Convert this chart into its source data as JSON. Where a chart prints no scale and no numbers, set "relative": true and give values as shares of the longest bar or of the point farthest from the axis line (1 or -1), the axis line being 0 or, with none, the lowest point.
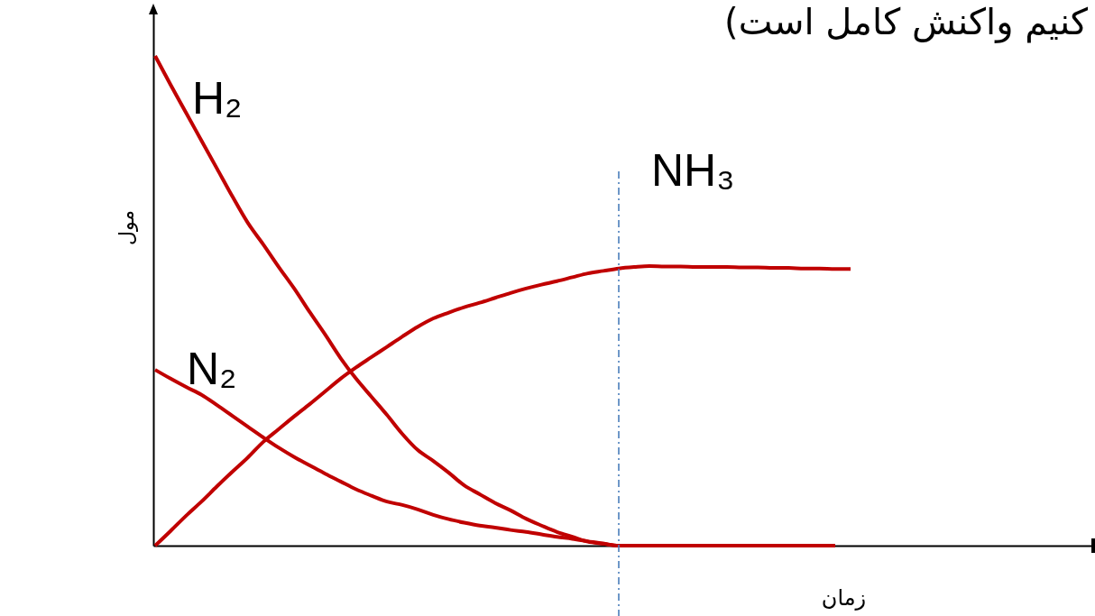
{
  "chart_data": {
    "type": "line",
    "title": "کنیم واکنش کامل است)",
    "xlabel": "زمان",
    "ylabel": "مول",
    "relative": true,
    "categories": [
      null,
      null,
      null,
      null,
      null,
      null,
      null,
      null,
      null,
      null,
      null,
      null,
      null,
      null,
      null,
      null,
      null,
      null,
      null,
      null,
      null,
      null,
      null,
      null,
      null,
      null,
      null,
      null,
      null,
      null,
      null,
      null,
      null,
      null,
      null,
      null,
      null,
      null,
      null,
      null,
      null,
      null,
      null,
      null,
      null,
      null
    ],
    "series": [
      {
        "name": "H₂",
        "color": "#c00000",
        "values": [
          1,
          0.941,
          0.884,
          0.827,
          0.77,
          0.713,
          0.659,
          0.615,
          0.569,
          0.525,
          0.477,
          0.431,
          0.383,
          0.341,
          0.304,
          0.267,
          0.228,
          0.195,
          0.173,
          0.149,
          0.123,
          0.105,
          0.087,
          0.072,
          0.055,
          0.041,
          0.028,
          0.018,
          0.008,
          0.004,
          0,
          0,
          0,
          0,
          0,
          0,
          0,
          0,
          0,
          0,
          0,
          0,
          0,
          0,
          0,
          null
        ]
      },
      {
        "name": "N₂",
        "color": "#c00000",
        "values": [
          0.359,
          0.341,
          0.324,
          0.308,
          0.287,
          0.265,
          0.243,
          0.221,
          0.2,
          0.181,
          0.164,
          0.147,
          0.131,
          0.115,
          0.102,
          0.09,
          0.083,
          0.074,
          0.063,
          0.054,
          0.047,
          0.041,
          0.037,
          0.032,
          0.028,
          0.023,
          0.018,
          0.014,
          0.009,
          0.004,
          0,
          0,
          0,
          0,
          0,
          0,
          0,
          0,
          0,
          0,
          0,
          0,
          0,
          0,
          0,
          null
        ]
      },
      {
        "name": "NH₃",
        "color": "#c00000",
        "values": [
          0,
          0.03,
          0.061,
          0.09,
          0.121,
          0.151,
          0.18,
          0.212,
          0.238,
          0.264,
          0.289,
          0.315,
          0.341,
          0.364,
          0.385,
          0.406,
          0.427,
          0.447,
          0.464,
          0.476,
          0.487,
          0.496,
          0.506,
          0.516,
          0.525,
          0.533,
          0.54,
          0.548,
          0.556,
          0.561,
          0.566,
          0.569,
          0.571,
          0.57,
          0.57,
          0.569,
          0.569,
          0.569,
          0.568,
          0.568,
          0.567,
          0.567,
          0.566,
          0.566,
          0.565,
          0.565
        ]
      }
    ]
  }
}
